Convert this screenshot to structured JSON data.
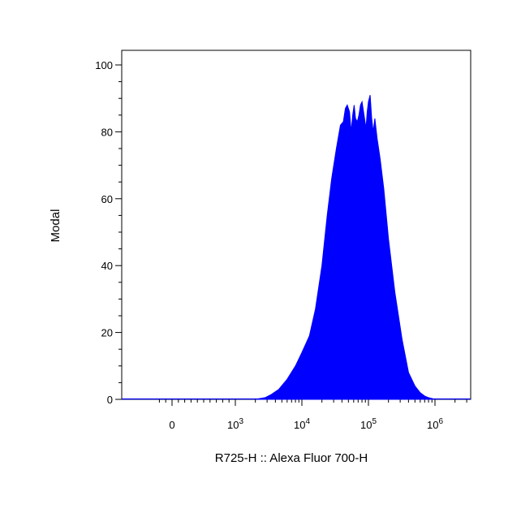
{
  "chart_data": {
    "type": "area",
    "title": "",
    "xlabel": "R725-H :: Alexa Fluor 700-H",
    "ylabel": "Modal",
    "x_scale": "biexponential",
    "xlim": [
      -250,
      3000000
    ],
    "ylim": [
      0,
      100
    ],
    "y_ticks": [
      0,
      20,
      40,
      60,
      80,
      100
    ],
    "x_ticks": [
      {
        "value": 0,
        "base": "0",
        "exp": ""
      },
      {
        "value": 1000,
        "base": "10",
        "exp": "3"
      },
      {
        "value": 10000,
        "base": "10",
        "exp": "4"
      },
      {
        "value": 100000,
        "base": "10",
        "exp": "5"
      },
      {
        "value": 1000000,
        "base": "10",
        "exp": "6"
      }
    ],
    "grid": false,
    "fill_color": "#0000ff",
    "series": [
      {
        "x": [
          2000,
          2800,
          3500,
          4500,
          6000,
          8000,
          10000,
          13000,
          16000,
          20000,
          24000,
          28000,
          33000,
          38000,
          42000,
          45000,
          48000,
          52000,
          55000,
          58000,
          61000,
          64000,
          68000,
          72000,
          76000,
          80000,
          86000,
          92000,
          96000,
          100000,
          106000,
          112000,
          118000,
          125000,
          135000,
          150000,
          170000,
          200000,
          250000,
          320000,
          400000,
          500000,
          600000,
          700000,
          800000,
          1000000
        ],
        "y": [
          0,
          0.5,
          1.5,
          3,
          6,
          10,
          14,
          19,
          27,
          40,
          55,
          66,
          75,
          82,
          83,
          87,
          88,
          86,
          80,
          85,
          88,
          84,
          83,
          85,
          88,
          89,
          85,
          81,
          86,
          89,
          91,
          84,
          80,
          84,
          78,
          72,
          63,
          48,
          32,
          18,
          8,
          4,
          2,
          1,
          0.5,
          0
        ]
      }
    ]
  }
}
